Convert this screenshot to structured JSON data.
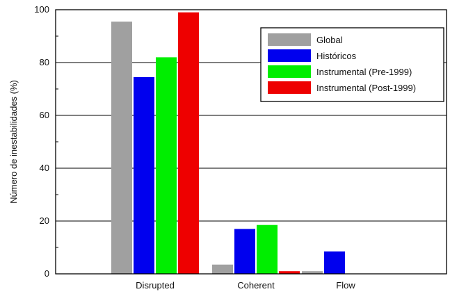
{
  "chart_data": {
    "type": "bar",
    "title": "",
    "xlabel": "",
    "ylabel": "Número de inestabilidades (%)",
    "ylim": [
      0,
      100
    ],
    "yticks": [
      0,
      20,
      40,
      60,
      80,
      100
    ],
    "grid": true,
    "legend_position": "top-right",
    "categories": [
      "Disrupted",
      "Coherent",
      "Flow"
    ],
    "series": [
      {
        "name": "Global",
        "color": "#a0a0a0",
        "values": [
          95.5,
          3.5,
          1
        ]
      },
      {
        "name": "Históricos",
        "color": "#0000ee",
        "values": [
          74.5,
          17,
          8.5
        ]
      },
      {
        "name": "Instrumental (Pre-1999)",
        "color": "#00ee00",
        "values": [
          82,
          18.5,
          0
        ]
      },
      {
        "name": "Instrumental (Post-1999)",
        "color": "#ee0000",
        "values": [
          99,
          1,
          0
        ]
      }
    ]
  }
}
